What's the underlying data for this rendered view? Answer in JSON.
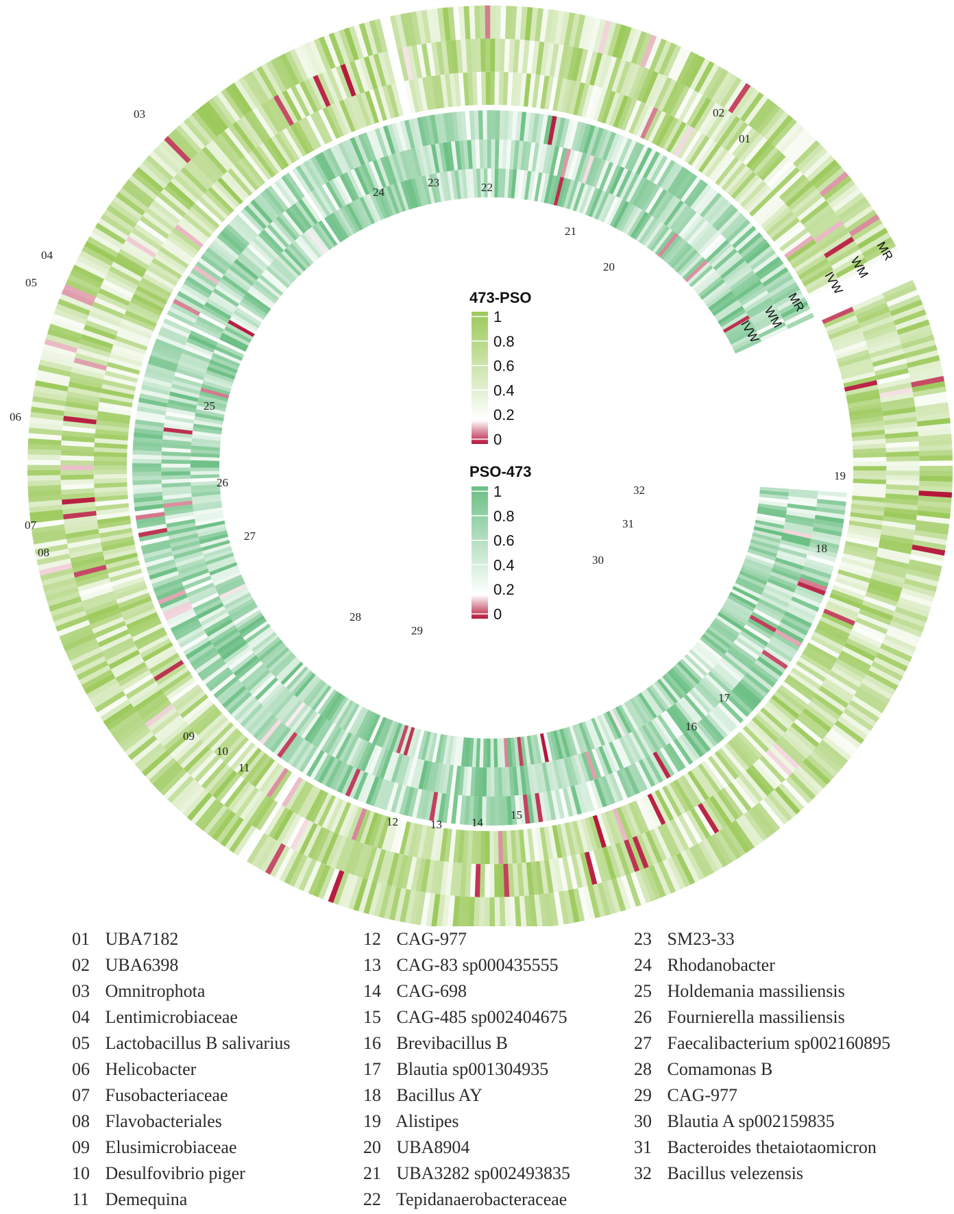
{
  "chart_data": {
    "type": "heatmap",
    "layout": "circular",
    "rings": [
      {
        "name": "473-PSO",
        "tracks": [
          "MR",
          "WM",
          "IVW"
        ],
        "colormap": [
          "#b5163a",
          "#ffffff",
          "#9bc95a"
        ],
        "sectors": [
          "01",
          "02",
          "03",
          "04",
          "05",
          "06",
          "07",
          "08",
          "09",
          "10",
          "11",
          "12",
          "13",
          "14",
          "15",
          "16",
          "17",
          "18",
          "19"
        ]
      },
      {
        "name": "PSO-473",
        "tracks": [
          "MR",
          "WM",
          "IVW"
        ],
        "colormap": [
          "#b5163a",
          "#ffffff",
          "#6bbf84"
        ],
        "sectors": [
          "20",
          "21",
          "22",
          "23",
          "24",
          "25",
          "26",
          "27",
          "28",
          "29",
          "30",
          "31",
          "32"
        ]
      }
    ],
    "legends": [
      {
        "title": "473-PSO",
        "ticks": [
          "1",
          "0.8",
          "0.6",
          "0.4",
          "0.2",
          "0"
        ],
        "colors": [
          "#9bc95a",
          "#ffffff",
          "#b5163a"
        ]
      },
      {
        "title": "PSO-473",
        "ticks": [
          "1",
          "0.8",
          "0.6",
          "0.4",
          "0.2",
          "0"
        ],
        "colors": [
          "#6bbf84",
          "#ffffff",
          "#b5163a"
        ]
      }
    ],
    "value_range": [
      0,
      1
    ],
    "taxa": [
      {
        "id": "01",
        "name": "UBA7182"
      },
      {
        "id": "02",
        "name": "UBA6398"
      },
      {
        "id": "03",
        "name": "Omnitrophota"
      },
      {
        "id": "04",
        "name": "Lentimicrobiaceae"
      },
      {
        "id": "05",
        "name": "Lactobacillus B salivarius"
      },
      {
        "id": "06",
        "name": "Helicobacter"
      },
      {
        "id": "07",
        "name": "Fusobacteriaceae"
      },
      {
        "id": "08",
        "name": "Flavobacteriales"
      },
      {
        "id": "09",
        "name": "Elusimicrobiaceae"
      },
      {
        "id": "10",
        "name": "Desulfovibrio piger"
      },
      {
        "id": "11",
        "name": "Demequina"
      },
      {
        "id": "12",
        "name": "CAG-977"
      },
      {
        "id": "13",
        "name": "CAG-83 sp000435555"
      },
      {
        "id": "14",
        "name": "CAG-698"
      },
      {
        "id": "15",
        "name": "CAG-485 sp002404675"
      },
      {
        "id": "16",
        "name": "Brevibacillus B"
      },
      {
        "id": "17",
        "name": "Blautia sp001304935"
      },
      {
        "id": "18",
        "name": "Bacillus AY"
      },
      {
        "id": "19",
        "name": "Alistipes"
      },
      {
        "id": "20",
        "name": "UBA8904"
      },
      {
        "id": "21",
        "name": "UBA3282 sp002493835"
      },
      {
        "id": "22",
        "name": "Tepidanaerobacteraceae"
      },
      {
        "id": "23",
        "name": "SM23-33"
      },
      {
        "id": "24",
        "name": "Rhodanobacter"
      },
      {
        "id": "25",
        "name": "Holdemania massiliensis"
      },
      {
        "id": "26",
        "name": "Fournierella massiliensis"
      },
      {
        "id": "27",
        "name": "Faecalibacterium sp002160895"
      },
      {
        "id": "28",
        "name": "Comamonas B"
      },
      {
        "id": "29",
        "name": "CAG-977"
      },
      {
        "id": "30",
        "name": "Blautia A sp002159835"
      },
      {
        "id": "31",
        "name": "Bacteroides thetaiotaomicron"
      },
      {
        "id": "32",
        "name": "Bacillus velezensis"
      }
    ]
  }
}
